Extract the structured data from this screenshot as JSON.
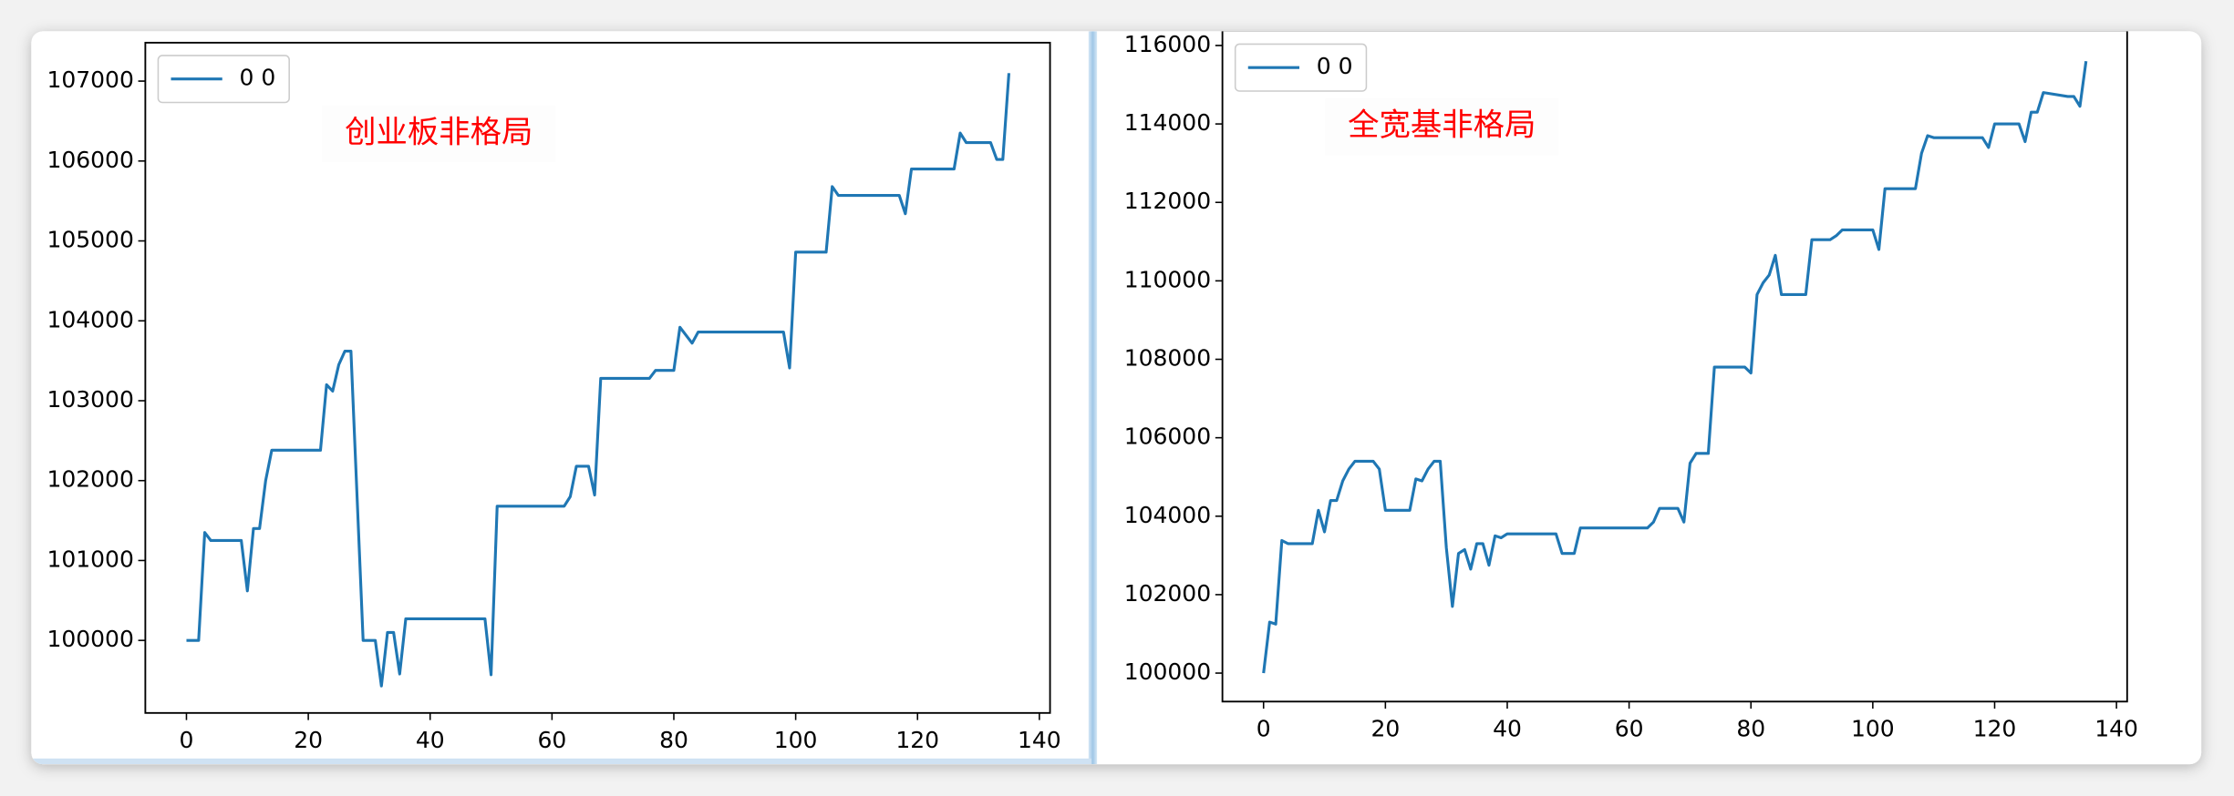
{
  "chart_data": [
    {
      "type": "line",
      "annotation": "创业板非格局",
      "annotation_color": "#ff0000",
      "legend": "upper left",
      "x": [
        0,
        2,
        3,
        4,
        9,
        10,
        11,
        12,
        13,
        14,
        22,
        23,
        24,
        25,
        26,
        27,
        29,
        31,
        32,
        33,
        34,
        35,
        36,
        49,
        50,
        51,
        62,
        63,
        64,
        66,
        67,
        68,
        76,
        77,
        80,
        81,
        83,
        84,
        98,
        99,
        100,
        105,
        106,
        107,
        117,
        118,
        119,
        126,
        127,
        128,
        132,
        133,
        134,
        135
      ],
      "series": [
        {
          "name": "0 0",
          "color": "#1f77b4",
          "values": [
            100000,
            100000,
            101350,
            101250,
            101250,
            100620,
            101400,
            101400,
            102000,
            102380,
            102380,
            103200,
            103120,
            103450,
            103620,
            103620,
            100000,
            100000,
            99430,
            100100,
            100100,
            99580,
            100270,
            100270,
            99570,
            101680,
            101680,
            101800,
            102180,
            102180,
            101820,
            103280,
            103280,
            103380,
            103380,
            103920,
            103720,
            103860,
            103860,
            103410,
            104860,
            104860,
            105680,
            105570,
            105570,
            105340,
            105900,
            105900,
            106350,
            106230,
            106230,
            106020,
            106020,
            107100
          ]
        }
      ],
      "xlim": [
        -6.75,
        141.75
      ],
      "xticks": [
        0,
        20,
        40,
        60,
        80,
        100,
        120,
        140
      ],
      "ylim": [
        99092,
        107481
      ],
      "yticks": [
        100000,
        101000,
        102000,
        103000,
        104000,
        105000,
        106000,
        107000
      ]
    },
    {
      "type": "line",
      "annotation": "全宽基非格局",
      "annotation_color": "#ff0000",
      "legend": "upper left",
      "x": [
        0,
        1,
        2,
        3,
        4,
        8,
        9,
        10,
        11,
        12,
        13,
        14,
        15,
        18,
        19,
        20,
        24,
        25,
        26,
        27,
        28,
        29,
        30,
        31,
        32,
        33,
        34,
        35,
        36,
        37,
        38,
        39,
        40,
        48,
        49,
        51,
        52,
        63,
        64,
        65,
        68,
        69,
        70,
        71,
        73,
        74,
        79,
        80,
        81,
        82,
        83,
        84,
        85,
        89,
        90,
        93,
        94,
        95,
        100,
        101,
        102,
        107,
        108,
        109,
        110,
        118,
        119,
        120,
        124,
        125,
        126,
        127,
        128,
        132,
        133,
        134,
        135
      ],
      "series": [
        {
          "name": "0 0",
          "color": "#1f77b4",
          "values": [
            100000,
            101300,
            101250,
            103380,
            103300,
            103300,
            104150,
            103600,
            104400,
            104400,
            104900,
            105200,
            105400,
            105400,
            105200,
            104150,
            104150,
            104950,
            104900,
            105200,
            105400,
            105400,
            103200,
            101700,
            103050,
            103150,
            102650,
            103300,
            103300,
            102750,
            103500,
            103450,
            103550,
            103550,
            103050,
            103050,
            103700,
            103700,
            103850,
            104200,
            104200,
            103850,
            105350,
            105600,
            105600,
            107800,
            107800,
            107650,
            109650,
            109950,
            110150,
            110650,
            109650,
            109650,
            111050,
            111050,
            111150,
            111300,
            111300,
            110800,
            112350,
            112350,
            113250,
            113700,
            113650,
            113650,
            113400,
            114000,
            114000,
            113550,
            114300,
            114300,
            114800,
            114700,
            114700,
            114450,
            115600
          ]
        }
      ],
      "xlim": [
        -6.75,
        141.75
      ],
      "xticks": [
        0,
        20,
        40,
        60,
        80,
        100,
        120,
        140
      ],
      "ylim": [
        99274,
        116380
      ],
      "yticks": [
        100000,
        102000,
        104000,
        106000,
        108000,
        110000,
        112000,
        114000,
        116000
      ]
    }
  ]
}
